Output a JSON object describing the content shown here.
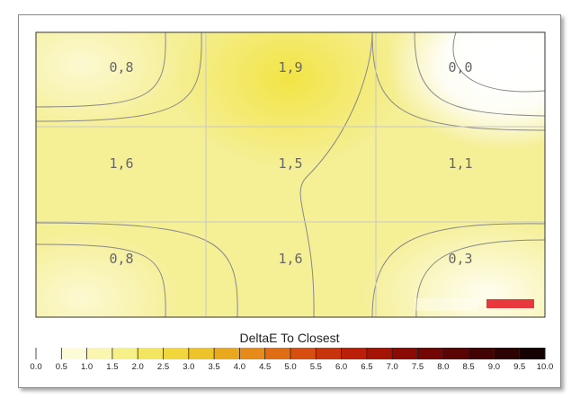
{
  "chart_data": {
    "type": "heatmap",
    "title": "DeltaE To Closest",
    "rows": 3,
    "cols": 3,
    "values": [
      [
        "0,8",
        "1,9",
        "0,0"
      ],
      [
        "1,6",
        "1,5",
        "1,1"
      ],
      [
        "0,8",
        "1,6",
        "0,3"
      ]
    ],
    "numeric_values": [
      [
        0.8,
        1.9,
        0.0
      ],
      [
        1.6,
        1.5,
        1.1
      ],
      [
        0.8,
        1.6,
        0.3
      ]
    ],
    "color_scale": {
      "min": 0.0,
      "max": 10.0,
      "ticks": [
        "0.0",
        "0.5",
        "1.0",
        "1.5",
        "2.0",
        "2.5",
        "3.0",
        "3.5",
        "4.0",
        "4.5",
        "5.0",
        "5.5",
        "6.0",
        "6.5",
        "7.0",
        "7.5",
        "8.0",
        "8.5",
        "9.0",
        "9.5",
        "10.0"
      ],
      "colors": [
        "#ffffff",
        "#fdfbd8",
        "#faf6b0",
        "#f7ef88",
        "#f3e560",
        "#f1d63c",
        "#eec229",
        "#eaa81f",
        "#e68b19",
        "#e06c14",
        "#d64f10",
        "#c9340c",
        "#bb1f09",
        "#a51206",
        "#8c0a05",
        "#730604",
        "#5a0403",
        "#420303",
        "#2c0202",
        "#150101"
      ]
    },
    "grid": true,
    "contour_color": "#888888",
    "indicator_color": "#e8383d"
  }
}
